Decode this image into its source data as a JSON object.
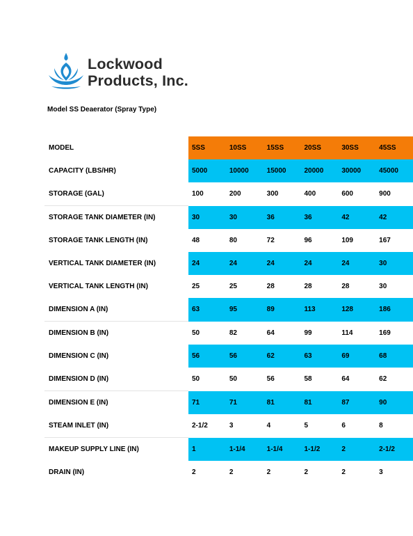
{
  "brand": {
    "line1": "Lockwood",
    "line2": "Products, Inc.",
    "logo_icon": "water-drop-lotus-icon",
    "colors": {
      "logo_blue": "#1f8bd0",
      "text": "#2b2b2b"
    }
  },
  "subtitle": "Model SS Deaerator (Spray Type)",
  "colors": {
    "header_bg": "#f47c08",
    "alt_row_bg": "#00c2f3"
  },
  "table": {
    "header_label": "MODEL",
    "models": [
      "5SS",
      "10SS",
      "15SS",
      "20SS",
      "30SS",
      "45SS"
    ],
    "rows": [
      {
        "label": "CAPACITY (LBS/HR)",
        "values": [
          "5000",
          "10000",
          "15000",
          "20000",
          "30000",
          "45000"
        ]
      },
      {
        "label": "STORAGE (GAL)",
        "values": [
          "100",
          "200",
          "300",
          "400",
          "600",
          "900"
        ]
      },
      {
        "label": "STORAGE TANK DIAMETER (IN)",
        "values": [
          "30",
          "30",
          "36",
          "36",
          "42",
          "42"
        ]
      },
      {
        "label": "STORAGE TANK LENGTH (IN)",
        "values": [
          "48",
          "80",
          "72",
          "96",
          "109",
          "167"
        ]
      },
      {
        "label": "VERTICAL TANK DIAMETER (IN)",
        "values": [
          "24",
          "24",
          "24",
          "24",
          "24",
          "30"
        ]
      },
      {
        "label": "VERTICAL TANK LENGTH (IN)",
        "values": [
          "25",
          "25",
          "28",
          "28",
          "28",
          "30"
        ]
      },
      {
        "label": "DIMENSION A (IN)",
        "values": [
          "63",
          "95",
          "89",
          "113",
          "128",
          "186"
        ]
      },
      {
        "label": "DIMENSION B (IN)",
        "values": [
          "50",
          "82",
          "64",
          "99",
          "114",
          "169"
        ]
      },
      {
        "label": "DIMENSION C (IN)",
        "values": [
          "56",
          "56",
          "62",
          "63",
          "69",
          "68"
        ]
      },
      {
        "label": "DIMENSION D (IN)",
        "values": [
          "50",
          "50",
          "56",
          "58",
          "64",
          "62"
        ]
      },
      {
        "label": "DIMENSION E (IN)",
        "values": [
          "71",
          "71",
          "81",
          "81",
          "87",
          "90"
        ]
      },
      {
        "label": "STEAM INLET (IN)",
        "values": [
          "2-1/2",
          "3",
          "4",
          "5",
          "6",
          "8"
        ]
      },
      {
        "label": "MAKEUP SUPPLY LINE (IN)",
        "values": [
          "1",
          "1-1/4",
          "1-1/4",
          "1-1/2",
          "2",
          "2-1/2"
        ]
      },
      {
        "label": "DRAIN (IN)",
        "values": [
          "2",
          "2",
          "2",
          "2",
          "2",
          "3"
        ]
      }
    ]
  }
}
